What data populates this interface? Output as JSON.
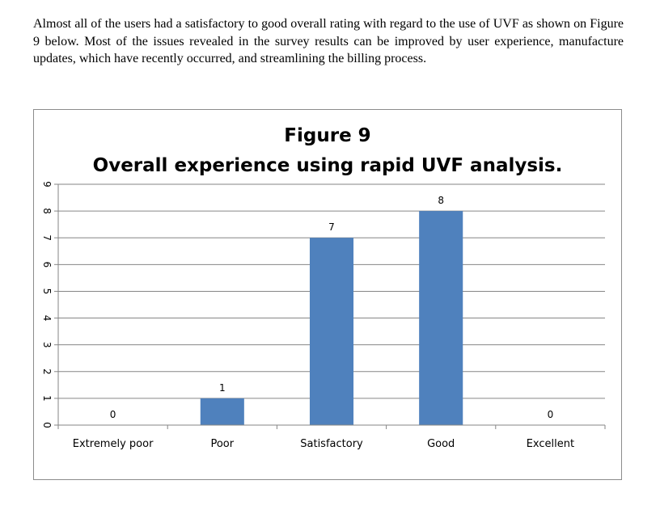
{
  "paragraph": "Almost all of the users had a satisfactory to good overall rating with regard to the use of UVF as shown on Figure 9 below.  Most of the issues revealed in the survey results can be improved by user experience, manufacture updates, which have recently occurred, and streamlining the billing process.",
  "chart_data": {
    "type": "bar",
    "title": "Figure 9",
    "subtitle": "Overall experience using rapid UVF analysis.",
    "categories": [
      "Extremely poor",
      "Poor",
      "Satisfactory",
      "Good",
      "Excellent"
    ],
    "values": [
      0,
      1,
      7,
      8,
      0
    ],
    "ylim": [
      0,
      9
    ],
    "yticks": [
      0,
      1,
      2,
      3,
      4,
      5,
      6,
      7,
      8,
      9
    ],
    "grid": true,
    "legend": "none",
    "data_labels": true,
    "bar_color": "#4f81bd",
    "grid_color": "#868686"
  }
}
